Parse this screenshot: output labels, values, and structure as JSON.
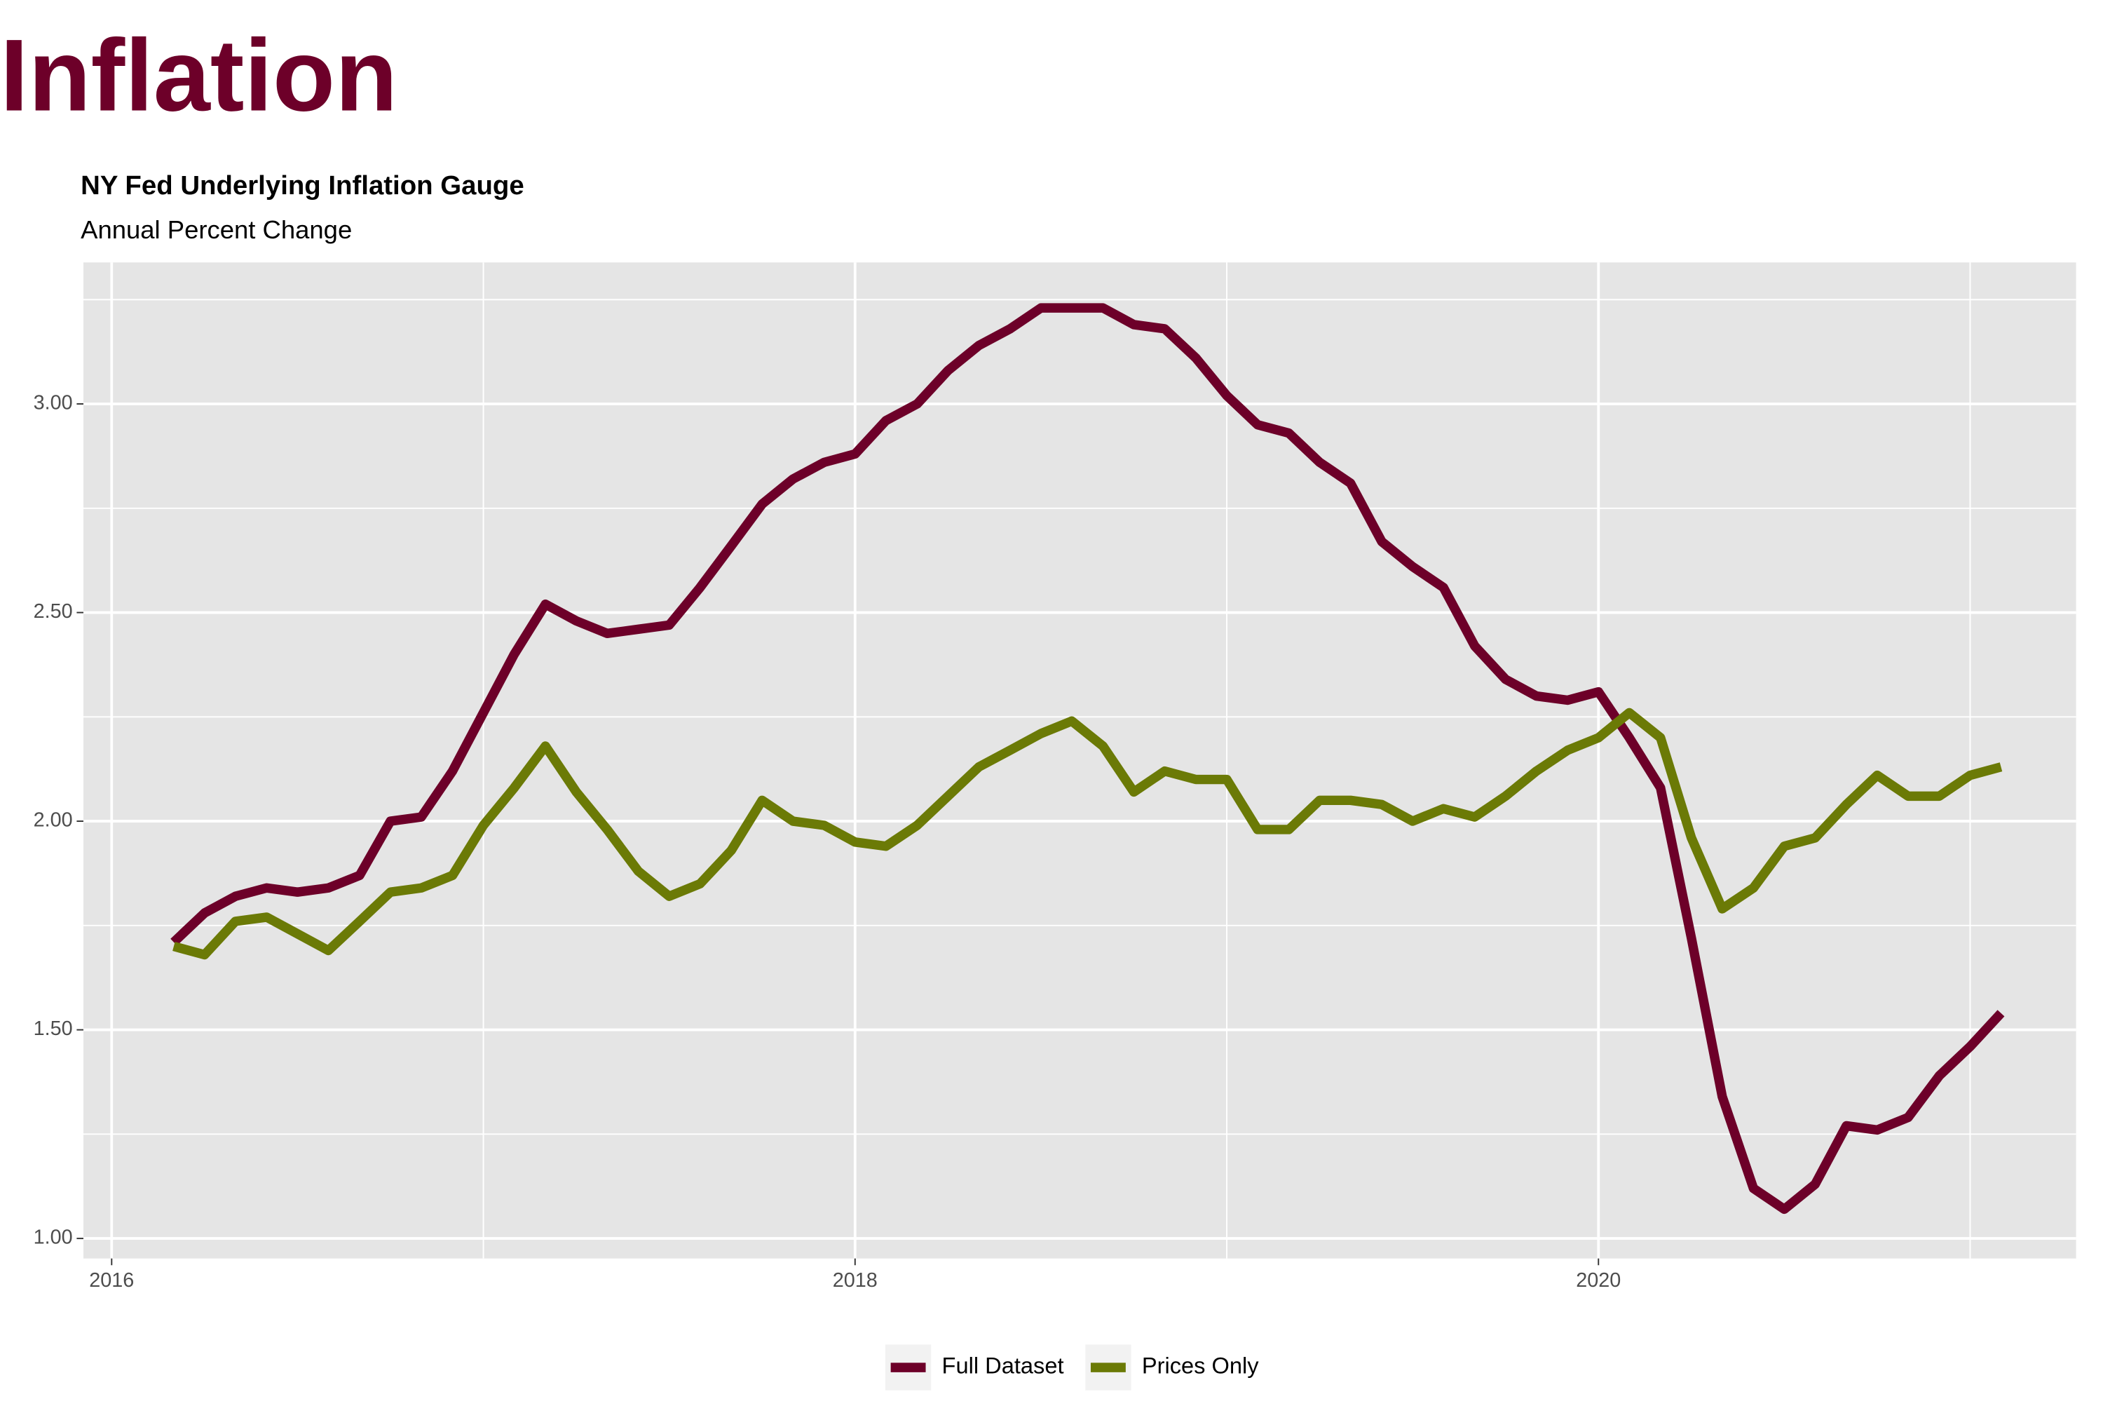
{
  "header": {
    "title": "Inflation"
  },
  "chart_data": {
    "type": "line",
    "title": "NY Fed Underlying Inflation Gauge",
    "subtitle": "Annual Percent Change",
    "x": [
      2016.167,
      2016.25,
      2016.333,
      2016.417,
      2016.5,
      2016.583,
      2016.667,
      2016.75,
      2016.833,
      2016.917,
      2017.0,
      2017.083,
      2017.167,
      2017.25,
      2017.333,
      2017.417,
      2017.5,
      2017.583,
      2017.667,
      2017.75,
      2017.833,
      2017.917,
      2018.0,
      2018.083,
      2018.167,
      2018.25,
      2018.333,
      2018.417,
      2018.5,
      2018.583,
      2018.667,
      2018.75,
      2018.833,
      2018.917,
      2019.0,
      2019.083,
      2019.167,
      2019.25,
      2019.333,
      2019.417,
      2019.5,
      2019.583,
      2019.667,
      2019.75,
      2019.833,
      2019.917,
      2020.0,
      2020.083,
      2020.167,
      2020.25,
      2020.333,
      2020.417,
      2020.5,
      2020.583,
      2020.667,
      2020.75,
      2020.833,
      2020.917,
      2021.0,
      2021.083
    ],
    "series": [
      {
        "name": "Full Dataset",
        "color": "#6d0029",
        "values": [
          1.71,
          1.78,
          1.82,
          1.84,
          1.83,
          1.84,
          1.87,
          2.0,
          2.01,
          2.12,
          2.26,
          2.4,
          2.52,
          2.48,
          2.45,
          2.46,
          2.47,
          2.56,
          2.66,
          2.76,
          2.82,
          2.86,
          2.88,
          2.96,
          3.0,
          3.08,
          3.14,
          3.18,
          3.23,
          3.23,
          3.23,
          3.19,
          3.18,
          3.11,
          3.02,
          2.95,
          2.93,
          2.86,
          2.81,
          2.67,
          2.61,
          2.56,
          2.42,
          2.34,
          2.3,
          2.29,
          2.31,
          2.2,
          2.08,
          1.72,
          1.34,
          1.12,
          1.07,
          1.13,
          1.27,
          1.26,
          1.29,
          1.39,
          1.46,
          1.54
        ]
      },
      {
        "name": "Prices Only",
        "color": "#6b7a06",
        "values": [
          1.7,
          1.68,
          1.76,
          1.77,
          1.73,
          1.69,
          1.76,
          1.83,
          1.84,
          1.87,
          1.99,
          2.08,
          2.18,
          2.07,
          1.98,
          1.88,
          1.82,
          1.85,
          1.93,
          2.05,
          2.0,
          1.99,
          1.95,
          1.94,
          1.99,
          2.06,
          2.13,
          2.17,
          2.21,
          2.24,
          2.18,
          2.07,
          2.12,
          2.1,
          2.1,
          1.98,
          1.98,
          2.05,
          2.05,
          2.04,
          2.0,
          2.03,
          2.01,
          2.06,
          2.12,
          2.17,
          2.2,
          2.26,
          2.2,
          1.96,
          1.79,
          1.84,
          1.94,
          1.96,
          2.04,
          2.11,
          2.06,
          2.06,
          2.11,
          2.13
        ]
      }
    ],
    "xlim": [
      2015.924,
      2021.285
    ],
    "xticks": [
      2016,
      2018,
      2020
    ],
    "ylim": [
      0.952,
      3.339
    ],
    "yticks": [
      {
        "value": 1,
        "label": "1.00"
      },
      {
        "value": 1.5,
        "label": "1.50"
      },
      {
        "value": 2,
        "label": "2.00"
      },
      {
        "value": 2.5,
        "label": "2.50"
      },
      {
        "value": 3,
        "label": "3.00"
      }
    ],
    "grid": true,
    "legend": "bottom"
  }
}
